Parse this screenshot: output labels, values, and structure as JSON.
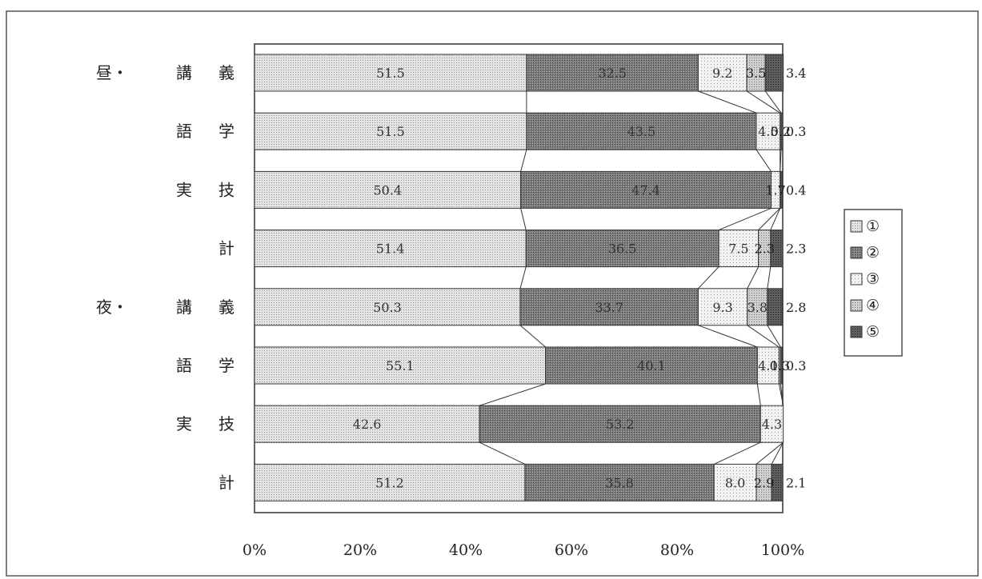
{
  "chart_data": {
    "type": "bar",
    "orientation": "horizontal",
    "stacked": "percent",
    "categories": [
      "講 義",
      "語 学",
      "実 技",
      "計",
      "講 義",
      "語 学",
      "実 技",
      "計"
    ],
    "groups": [
      {
        "label": "昼・",
        "category_indices": [
          0,
          1,
          2,
          3
        ]
      },
      {
        "label": "夜・",
        "category_indices": [
          4,
          5,
          6,
          7
        ]
      }
    ],
    "series": [
      {
        "name": "①",
        "values": [
          51.5,
          51.5,
          50.4,
          51.4,
          50.3,
          55.1,
          42.6,
          51.2
        ]
      },
      {
        "name": "②",
        "values": [
          32.5,
          43.5,
          47.4,
          36.5,
          33.7,
          40.1,
          53.2,
          35.8
        ]
      },
      {
        "name": "③",
        "values": [
          9.2,
          4.5,
          1.7,
          7.5,
          9.3,
          4.1,
          4.3,
          8.0
        ]
      },
      {
        "name": "④",
        "values": [
          3.5,
          0.2,
          0.0,
          2.3,
          3.8,
          0.3,
          0.0,
          2.9
        ]
      },
      {
        "name": "⑤",
        "values": [
          3.4,
          0.3,
          0.4,
          2.3,
          2.8,
          0.3,
          0.0,
          2.1
        ]
      }
    ],
    "bar_labels": [
      [
        "51.5",
        "32.5",
        "9.2",
        "3.5",
        "3.4"
      ],
      [
        "51.5",
        "43.5",
        "4.5",
        "0.2",
        "0.3"
      ],
      [
        "50.4",
        "47.4",
        "1.7",
        "",
        "0.4"
      ],
      [
        "51.4",
        "36.5",
        "7.5",
        "2.3",
        "2.3"
      ],
      [
        "50.3",
        "33.7",
        "9.3",
        "3.8",
        "2.8"
      ],
      [
        "55.1",
        "40.1",
        "4.1",
        "0.3",
        "0.3"
      ],
      [
        "42.6",
        "53.2",
        "4.3",
        "",
        ""
      ],
      [
        "51.2",
        "35.8",
        "8.0",
        "2.9",
        "2.1"
      ]
    ],
    "x_ticks": [
      "0%",
      "20%",
      "40%",
      "60%",
      "80%",
      "100%"
    ],
    "xlim": [
      0,
      100
    ],
    "legend": "right",
    "series_colors": [
      "#d9d9d9",
      "#8c8c8c",
      "#e6e6e6",
      "#c8c8c8",
      "#6e6e6e"
    ],
    "connector_lines": true
  }
}
